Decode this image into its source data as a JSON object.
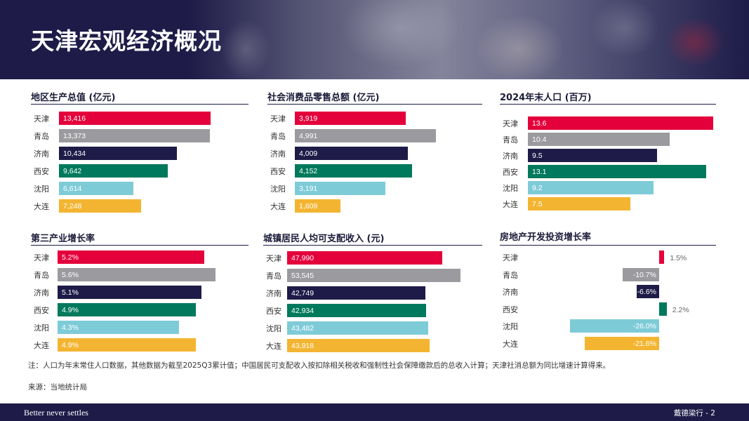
{
  "header": {
    "title": "天津宏观经济概况"
  },
  "colors": {
    "天津": "#e4003b",
    "青岛": "#9b9b9f",
    "济南": "#1e1b48",
    "西安": "#00795c",
    "沈阳": "#7ecbd8",
    "大连": "#f3b531"
  },
  "chart_data": [
    {
      "type": "bar",
      "title": "地区生产总值 (亿元)",
      "categories": [
        "天津",
        "青岛",
        "济南",
        "西安",
        "沈阳",
        "大连"
      ],
      "values": [
        13416,
        13373,
        10434,
        9642,
        6614,
        7248
      ],
      "labels": [
        "13,416",
        "13,373",
        "10,434",
        "9,642",
        "6,614",
        "7,248"
      ],
      "xlim": [
        0,
        13416
      ]
    },
    {
      "type": "bar",
      "title": "社会消费品零售总额 (亿元)",
      "categories": [
        "天津",
        "青岛",
        "济南",
        "西安",
        "沈阳",
        "大连"
      ],
      "values": [
        3919,
        4991,
        4009,
        4152,
        3191,
        1609
      ],
      "labels": [
        "3,919",
        "4,991",
        "4,009",
        "4,152",
        "3,191",
        "1,609"
      ],
      "xlim": [
        0,
        4991
      ]
    },
    {
      "type": "bar",
      "title": "2024年末人口 (百万)",
      "categories": [
        "天津",
        "青岛",
        "济南",
        "西安",
        "沈阳",
        "大连"
      ],
      "values": [
        13.6,
        10.4,
        9.5,
        13.1,
        9.2,
        7.5
      ],
      "labels": [
        "13.6",
        "10.4",
        "9.5",
        "13.1",
        "9.2",
        "7.5"
      ],
      "xlim": [
        0,
        13.6
      ]
    },
    {
      "type": "bar",
      "title": "第三产业增长率",
      "categories": [
        "天津",
        "青岛",
        "济南",
        "西安",
        "沈阳",
        "大连"
      ],
      "values": [
        5.2,
        5.6,
        5.1,
        4.9,
        4.3,
        4.9
      ],
      "labels": [
        "5.2%",
        "5.6%",
        "5.1%",
        "4.9%",
        "4.3%",
        "4.9%"
      ],
      "xlim": [
        0,
        5.6
      ]
    },
    {
      "type": "bar",
      "title": "城镇居民人均可支配收入 (元)",
      "categories": [
        "天津",
        "青岛",
        "济南",
        "西安",
        "沈阳",
        "大连"
      ],
      "values": [
        47990,
        53545,
        42749,
        42934,
        43482,
        43918
      ],
      "labels": [
        "47,990",
        "53,545",
        "42,749",
        "42,934",
        "43,482",
        "43,918"
      ],
      "xlim": [
        0,
        53545
      ]
    },
    {
      "type": "bar",
      "title": "房地产开发投资增长率",
      "categories": [
        "天津",
        "青岛",
        "济南",
        "西安",
        "沈阳",
        "大连"
      ],
      "values": [
        1.5,
        -10.7,
        -6.6,
        2.2,
        -26.0,
        -21.6
      ],
      "labels": [
        "1.5%",
        "-10.7%",
        "-6.6%",
        "2.2%",
        "-26.0%",
        "-21.6%"
      ],
      "xlim": [
        -26.0,
        2.2
      ]
    }
  ],
  "note": "注：人口为年末常住人口数据，其他数据为截至2025Q3累计值；中国居民可支配收入按扣除相关税收和强制性社会保障缴款后的总收入计算；天津社消总额为同比增速计算得来。",
  "source": "来源：当地统计局",
  "footer": {
    "slogan": "Better never settles",
    "brand": "戴德梁行 - 2"
  }
}
